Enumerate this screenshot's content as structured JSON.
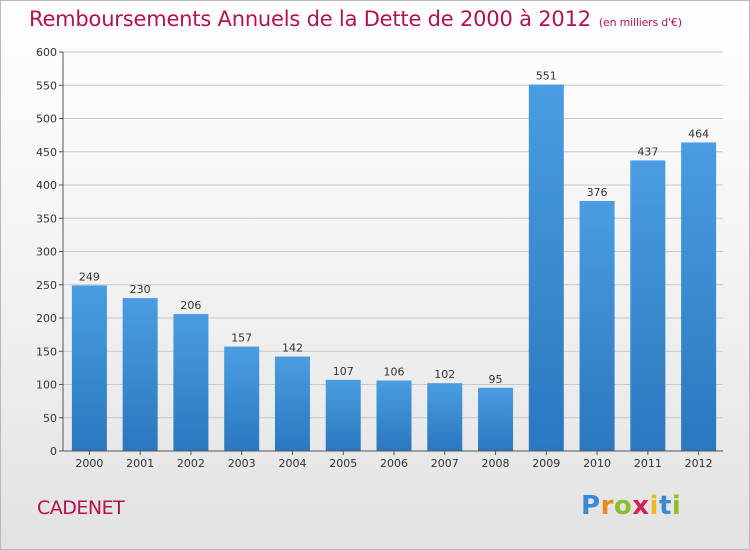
{
  "chart_data": {
    "type": "bar",
    "title": "Remboursements Annuels de la Dette de 2000 à 2012",
    "unit_note": "(en milliers d'€)",
    "categories": [
      "2000",
      "2001",
      "2002",
      "2003",
      "2004",
      "2005",
      "2006",
      "2007",
      "2008",
      "2009",
      "2010",
      "2011",
      "2012"
    ],
    "values": [
      249,
      230,
      206,
      157,
      142,
      107,
      106,
      102,
      95,
      551,
      376,
      437,
      464
    ],
    "ylim": [
      0,
      600
    ],
    "yticks": [
      0,
      50,
      100,
      150,
      200,
      250,
      300,
      350,
      400,
      450,
      500,
      550,
      600
    ],
    "grid": true,
    "bar_color": "#4a9de0",
    "bar_color_dark": "#2a78bf",
    "grid_color": "#c8c8c8"
  },
  "place_name": "CADENET",
  "brand": {
    "letters": [
      "P",
      "r",
      "o",
      "x",
      "i",
      "t",
      "i"
    ],
    "colors": [
      "#3b88d4",
      "#e6891e",
      "#8bbf2b",
      "#d1235a",
      "#f0b81c",
      "#3b88d4",
      "#8bbf2b"
    ]
  },
  "colors": {
    "accent": "#b3124e"
  }
}
